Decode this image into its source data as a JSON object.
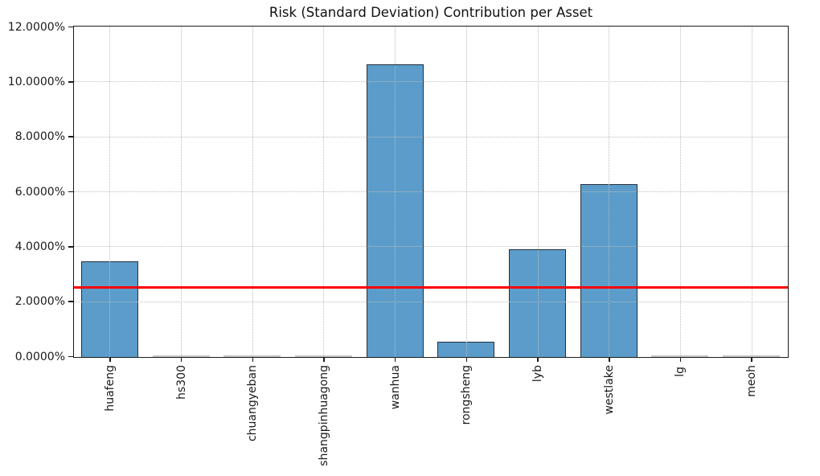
{
  "chart_data": {
    "type": "bar",
    "title": "Risk (Standard Deviation) Contribution per Asset",
    "categories": [
      "huafeng",
      "hs300",
      "chuangyeban",
      "shangpinhuagong",
      "wanhua",
      "rongsheng",
      "lyb",
      "westlake",
      "lg",
      "meoh"
    ],
    "values": [
      3.48,
      0.0,
      0.0,
      0.0,
      10.65,
      0.55,
      3.92,
      6.28,
      0.0,
      0.0
    ],
    "unit": "%",
    "ylim": [
      0,
      12
    ],
    "ytick_step": 2,
    "ytick_labels": [
      "0.0000%",
      "2.0000%",
      "4.0000%",
      "6.0000%",
      "8.0000%",
      "10.0000%",
      "12.0000%"
    ],
    "reference_line": {
      "value": 2.5,
      "color": "#ff0000"
    },
    "grid": "dotted",
    "legend": "none",
    "xlabel": "",
    "ylabel": "",
    "colors": {
      "bar_fill": "#5b9cca",
      "bar_edge": "#24313c",
      "zero_bar": "#c6c6c6",
      "grid": "#bdbdbd",
      "spine": "#1a1a1a",
      "title_text": "#111111"
    }
  }
}
